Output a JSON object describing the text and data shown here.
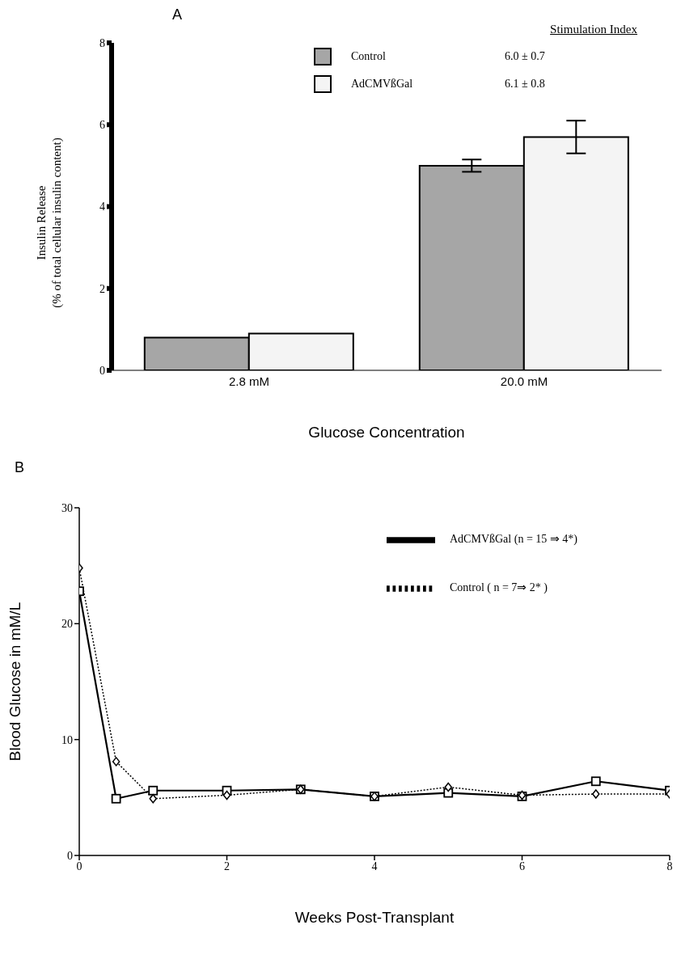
{
  "chart_data": [
    {
      "type": "bar",
      "title": "A",
      "xlabel": "Glucose Concentration",
      "ylabel": "Insulin Release\n(% of total cellular insulin content)",
      "legend_title": "Stimulation Index",
      "categories": [
        "2.8 mM",
        "20.0 mM"
      ],
      "series": [
        {
          "name": "Control",
          "color": "#a6a6a6",
          "values": [
            0.8,
            5.0
          ],
          "errors": [
            null,
            0.15
          ]
        },
        {
          "name": "AdCMVßGal",
          "color": "#f4f4f4",
          "values": [
            0.9,
            5.7
          ],
          "errors": [
            null,
            0.4
          ]
        }
      ],
      "annotations": [
        "6.0 ± 0.7",
        "6.1 ± 0.8"
      ],
      "ylim": [
        0,
        8
      ],
      "yticks": [
        0,
        2,
        4,
        6,
        8
      ],
      "grid": false,
      "legend": "top right"
    },
    {
      "type": "line",
      "title": "B",
      "xlabel": "Weeks Post-Transplant",
      "ylabel": "Blood Glucose in mM/L",
      "x": [
        0,
        0.5,
        1,
        2,
        3,
        4,
        5,
        6,
        7,
        8
      ],
      "series": [
        {
          "name": "AdCMVßGal (n = 15 ⇒ 4*)",
          "color": "#000000",
          "marker": "square",
          "line_style": "solid",
          "values": [
            22.8,
            4.9,
            5.6,
            5.6,
            5.7,
            5.1,
            5.4,
            5.1,
            6.4,
            5.6
          ]
        },
        {
          "name": "Control ( n = 7⇒ 2* )",
          "color": "#000000",
          "marker": "diamond",
          "line_style": "dotted",
          "values": [
            24.8,
            8.1,
            4.9,
            5.2,
            5.7,
            5.1,
            5.9,
            5.2,
            5.3,
            5.3
          ]
        }
      ],
      "xlim": [
        0,
        8
      ],
      "xticks": [
        0,
        2,
        4,
        6,
        8
      ],
      "ylim": [
        0,
        30
      ],
      "yticks": [
        0,
        10,
        20,
        30
      ],
      "grid": false,
      "legend": "top right"
    }
  ]
}
